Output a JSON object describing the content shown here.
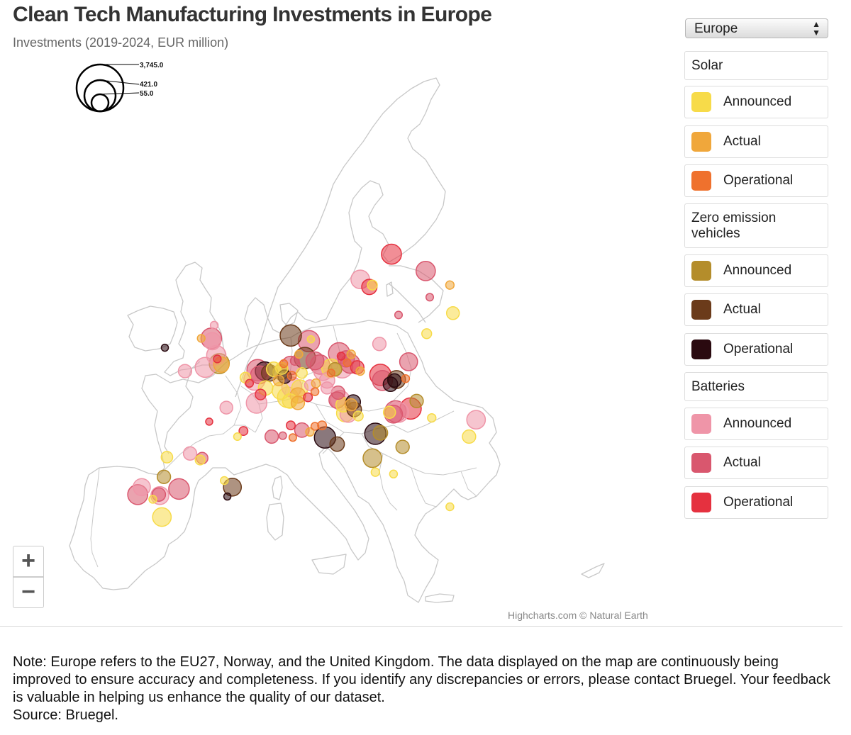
{
  "header": {
    "title": "Clean Tech Manufacturing Investments in Europe",
    "subtitle": "Investments (2019-2024, EUR million)"
  },
  "region_selector": {
    "value": "Europe"
  },
  "bubble_legend": {
    "labels": [
      "3,745.0",
      "421.0",
      "55.0"
    ],
    "values": [
      3745.0,
      421.0,
      55.0
    ]
  },
  "legend": {
    "groups": [
      {
        "name": "Solar",
        "items": [
          {
            "label": "Announced",
            "color": "#f7db49"
          },
          {
            "label": "Actual",
            "color": "#f0a73b"
          },
          {
            "label": "Operational",
            "color": "#ef712d"
          }
        ]
      },
      {
        "name": "Zero emission vehicles",
        "items": [
          {
            "label": "Announced",
            "color": "#b48d2b"
          },
          {
            "label": "Actual",
            "color": "#6b3b1a"
          },
          {
            "label": "Operational",
            "color": "#2a0a10"
          }
        ]
      },
      {
        "name": "Batteries",
        "items": [
          {
            "label": "Announced",
            "color": "#ef95a8"
          },
          {
            "label": "Actual",
            "color": "#d9576e"
          },
          {
            "label": "Operational",
            "color": "#e5313f"
          }
        ]
      }
    ]
  },
  "zoom": {
    "in_label": "+",
    "out_label": "−"
  },
  "credits": "Highcharts.com © Natural Earth",
  "note": {
    "text": "Note: Europe refers to the EU27, Norway, and the United Kingdom. The data displayed on the map are continuously being improved to ensure accuracy and completeness. If you identify any discrepancies or errors, please contact Bruegel. Your feedback is valuable in helping us enhance the quality of our dataset.",
    "source": "Source: Bruegel."
  },
  "chart_data": {
    "type": "bubble-map",
    "title": "Clean Tech Manufacturing Investments in Europe",
    "subtitle": "Investments (2019-2024, EUR million)",
    "region": "Europe",
    "size_legend": [
      3745.0,
      421.0,
      55.0
    ],
    "categories": {
      "SA": "Solar — Announced",
      "SB": "Solar — Actual",
      "SO": "Solar — Operational",
      "ZA": "Zero emission vehicles — Announced",
      "ZB": "Zero emission vehicles — Actual",
      "ZO": "Zero emission vehicles — Operational",
      "BA": "Batteries — Announced",
      "BB": "Batteries — Actual",
      "BO": "Batteries — Operational"
    },
    "points": [
      {
        "lon": 16.2,
        "lat": 64.5,
        "v": 1200,
        "c": "BO"
      },
      {
        "lon": 19.6,
        "lat": 62.7,
        "v": 1100,
        "c": "BB"
      },
      {
        "lon": 13.1,
        "lat": 61.8,
        "v": 1000,
        "c": "BA"
      },
      {
        "lon": 14.3,
        "lat": 61.2,
        "v": 150,
        "c": "SA"
      },
      {
        "lon": 14.0,
        "lat": 61.0,
        "v": 600,
        "c": "BO"
      },
      {
        "lon": 22.0,
        "lat": 61.2,
        "v": 80,
        "c": "SB"
      },
      {
        "lon": 20.0,
        "lat": 59.9,
        "v": 50,
        "c": "BB"
      },
      {
        "lon": 22.3,
        "lat": 58.2,
        "v": 350,
        "c": "SA"
      },
      {
        "lon": -1.4,
        "lat": 56.9,
        "v": 60,
        "c": "BA"
      },
      {
        "lon": -1.7,
        "lat": 55.5,
        "v": 1300,
        "c": "BB"
      },
      {
        "lon": -1.6,
        "lat": 55.2,
        "v": 800,
        "c": "BA"
      },
      {
        "lon": -2.7,
        "lat": 55.5,
        "v": 55,
        "c": "SB"
      },
      {
        "lon": -6.3,
        "lat": 54.5,
        "v": 40,
        "c": "ZO"
      },
      {
        "lon": -1.2,
        "lat": 53.7,
        "v": 1100,
        "c": "BA"
      },
      {
        "lon": -1.1,
        "lat": 53.3,
        "v": 55,
        "c": "BO"
      },
      {
        "lon": -0.9,
        "lat": 52.8,
        "v": 1200,
        "c": "ZA"
      },
      {
        "lon": -0.7,
        "lat": 52.7,
        "v": 600,
        "c": "SB"
      },
      {
        "lon": -2.3,
        "lat": 52.4,
        "v": 1200,
        "c": "BA"
      },
      {
        "lon": -4.3,
        "lat": 52.0,
        "v": 400,
        "c": "BA"
      },
      {
        "lon": 2.9,
        "lat": 52.1,
        "v": 1500,
        "c": "BB"
      },
      {
        "lon": 3.6,
        "lat": 52.0,
        "v": 1000,
        "c": "ZO"
      },
      {
        "lon": 4.1,
        "lat": 51.8,
        "v": 700,
        "c": "ZB"
      },
      {
        "lon": 4.5,
        "lat": 52.2,
        "v": 500,
        "c": "SA"
      },
      {
        "lon": 5.3,
        "lat": 52.3,
        "v": 300,
        "c": "SA"
      },
      {
        "lon": 5.2,
        "lat": 51.9,
        "v": 600,
        "c": "ZA"
      },
      {
        "lon": 3.1,
        "lat": 51.6,
        "v": 900,
        "c": "BB"
      },
      {
        "lon": 2.6,
        "lat": 51.1,
        "v": 1500,
        "c": "BA"
      },
      {
        "lon": 5.6,
        "lat": 51.4,
        "v": 400,
        "c": "ZO"
      },
      {
        "lon": 6.2,
        "lat": 52.6,
        "v": 1000,
        "c": "BB"
      },
      {
        "lon": 7.6,
        "lat": 53.4,
        "v": 1400,
        "c": "ZB"
      },
      {
        "lon": 8.6,
        "lat": 53.1,
        "v": 900,
        "c": "BB"
      },
      {
        "lon": 9.1,
        "lat": 52.7,
        "v": 1100,
        "c": "BB"
      },
      {
        "lon": 9.4,
        "lat": 52.0,
        "v": 1000,
        "c": "BA"
      },
      {
        "lon": 10.2,
        "lat": 52.3,
        "v": 1000,
        "c": "SA"
      },
      {
        "lon": 10.6,
        "lat": 52.2,
        "v": 400,
        "c": "ZA"
      },
      {
        "lon": 11.3,
        "lat": 52.4,
        "v": 1400,
        "c": "BA"
      },
      {
        "lon": 11.0,
        "lat": 53.9,
        "v": 1500,
        "c": "BB"
      },
      {
        "lon": 11.7,
        "lat": 53.3,
        "v": 700,
        "c": "BB"
      },
      {
        "lon": 12.1,
        "lat": 52.8,
        "v": 1100,
        "c": "BB"
      },
      {
        "lon": 12.8,
        "lat": 52.4,
        "v": 400,
        "c": "BO"
      },
      {
        "lon": 11.2,
        "lat": 53.6,
        "v": 60,
        "c": "BO"
      },
      {
        "lon": 12.2,
        "lat": 53.8,
        "v": 80,
        "c": "SB"
      },
      {
        "lon": 11.8,
        "lat": 52.9,
        "v": 50,
        "c": "SO"
      },
      {
        "lon": 13.1,
        "lat": 52.0,
        "v": 80,
        "c": "SB"
      },
      {
        "lon": 9.8,
        "lat": 51.0,
        "v": 600,
        "c": "BA"
      },
      {
        "lon": 7.1,
        "lat": 50.2,
        "v": 700,
        "c": "SA"
      },
      {
        "lon": 6.3,
        "lat": 50.3,
        "v": 1200,
        "c": "BA"
      },
      {
        "lon": 5.2,
        "lat": 49.9,
        "v": 800,
        "c": "SA"
      },
      {
        "lon": 5.9,
        "lat": 49.2,
        "v": 1300,
        "c": "SA"
      },
      {
        "lon": 6.9,
        "lat": 49.4,
        "v": 600,
        "c": "SB"
      },
      {
        "lon": 6.1,
        "lat": 48.8,
        "v": 500,
        "c": "SA"
      },
      {
        "lon": 6.9,
        "lat": 48.6,
        "v": 400,
        "c": "SB"
      },
      {
        "lon": 7.9,
        "lat": 49.2,
        "v": 100,
        "c": "BO"
      },
      {
        "lon": 8.1,
        "lat": 50.5,
        "v": 200,
        "c": "BA"
      },
      {
        "lon": 8.6,
        "lat": 49.8,
        "v": 60,
        "c": "SO"
      },
      {
        "lon": 8.7,
        "lat": 50.7,
        "v": 100,
        "c": "SB"
      },
      {
        "lon": 10.9,
        "lat": 49.7,
        "v": 400,
        "c": "BB"
      },
      {
        "lon": 11.1,
        "lat": 48.9,
        "v": 1100,
        "c": "BA"
      },
      {
        "lon": 11.4,
        "lat": 48.4,
        "v": 500,
        "c": "SA"
      },
      {
        "lon": 12.4,
        "lat": 48.7,
        "v": 500,
        "c": "ZO"
      },
      {
        "lon": 10.8,
        "lat": 48.9,
        "v": 700,
        "c": "BB"
      },
      {
        "lon": 12.2,
        "lat": 48.4,
        "v": 300,
        "c": "SB"
      },
      {
        "lon": 15.1,
        "lat": 51.6,
        "v": 1500,
        "c": "BO"
      },
      {
        "lon": 15.3,
        "lat": 51.0,
        "v": 1200,
        "c": "BB"
      },
      {
        "lon": 16.7,
        "lat": 51.1,
        "v": 900,
        "c": "ZB"
      },
      {
        "lon": 16.5,
        "lat": 51.0,
        "v": 400,
        "c": "ZO"
      },
      {
        "lon": 17.6,
        "lat": 51.2,
        "v": 60,
        "c": "SO"
      },
      {
        "lon": 16.1,
        "lat": 50.6,
        "v": 500,
        "c": "ZO"
      },
      {
        "lon": 17.9,
        "lat": 53.0,
        "v": 900,
        "c": "BB"
      },
      {
        "lon": 15.0,
        "lat": 54.9,
        "v": 400,
        "c": "BA"
      },
      {
        "lon": 19.7,
        "lat": 56.0,
        "v": 150,
        "c": "SA"
      },
      {
        "lon": 18.7,
        "lat": 48.8,
        "v": 400,
        "c": "ZA"
      },
      {
        "lon": 18.1,
        "lat": 48.0,
        "v": 1500,
        "c": "BO"
      },
      {
        "lon": 16.6,
        "lat": 47.7,
        "v": 1500,
        "c": "BB"
      },
      {
        "lon": 16.9,
        "lat": 47.6,
        "v": 1200,
        "c": "BA"
      },
      {
        "lon": 16.4,
        "lat": 47.4,
        "v": 900,
        "c": "BB"
      },
      {
        "lon": 16.0,
        "lat": 47.6,
        "v": 300,
        "c": "SA"
      },
      {
        "lon": 11.9,
        "lat": 47.4,
        "v": 700,
        "c": "BA"
      },
      {
        "lon": 11.6,
        "lat": 47.5,
        "v": 800,
        "c": "SA"
      },
      {
        "lon": 12.5,
        "lat": 47.9,
        "v": 500,
        "c": "ZB"
      },
      {
        "lon": 12.9,
        "lat": 47.2,
        "v": 150,
        "c": "SA"
      },
      {
        "lon": 14.6,
        "lat": 45.3,
        "v": 1400,
        "c": "ZO"
      },
      {
        "lon": 15.1,
        "lat": 45.4,
        "v": 500,
        "c": "ZA"
      },
      {
        "lon": 20.2,
        "lat": 47.0,
        "v": 80,
        "c": "SA"
      },
      {
        "lon": 24.6,
        "lat": 46.8,
        "v": 1000,
        "c": "BA"
      },
      {
        "lon": 23.9,
        "lat": 45.0,
        "v": 400,
        "c": "SA"
      },
      {
        "lon": 17.3,
        "lat": 43.9,
        "v": 400,
        "c": "ZA"
      },
      {
        "lon": 14.3,
        "lat": 42.7,
        "v": 1000,
        "c": "ZA"
      },
      {
        "lon": 14.6,
        "lat": 41.2,
        "v": 80,
        "c": "SA"
      },
      {
        "lon": 16.4,
        "lat": 41.0,
        "v": 60,
        "c": "SA"
      },
      {
        "lon": 9.6,
        "lat": 44.9,
        "v": 1500,
        "c": "ZO"
      },
      {
        "lon": 9.3,
        "lat": 46.2,
        "v": 100,
        "c": "SO"
      },
      {
        "lon": 10.8,
        "lat": 44.2,
        "v": 500,
        "c": "ZB"
      },
      {
        "lon": 7.3,
        "lat": 45.7,
        "v": 500,
        "c": "BB"
      },
      {
        "lon": 6.2,
        "lat": 46.2,
        "v": 100,
        "c": "BO"
      },
      {
        "lon": 8.6,
        "lat": 46.1,
        "v": 60,
        "c": "SO"
      },
      {
        "lon": 8.1,
        "lat": 45.5,
        "v": 80,
        "c": "SB"
      },
      {
        "lon": 2.8,
        "lat": 48.6,
        "v": 1300,
        "c": "BA"
      },
      {
        "lon": 3.2,
        "lat": 49.5,
        "v": 200,
        "c": "BO"
      },
      {
        "lon": 3.7,
        "lat": 50.2,
        "v": 500,
        "c": "SA"
      },
      {
        "lon": 5.0,
        "lat": 51.0,
        "v": 200,
        "c": "SB"
      },
      {
        "lon": 2.1,
        "lat": 50.7,
        "v": 60,
        "c": "BO"
      },
      {
        "lon": 1.7,
        "lat": 51.3,
        "v": 200,
        "c": "SA"
      },
      {
        "lon": 6.3,
        "lat": 51.5,
        "v": 100,
        "c": "SO"
      },
      {
        "lon": 9.8,
        "lat": 50.2,
        "v": 300,
        "c": "BA"
      },
      {
        "lon": 10.2,
        "lat": 51.8,
        "v": 50,
        "c": "SO"
      },
      {
        "lon": 7.0,
        "lat": 53.8,
        "v": 60,
        "c": "SB"
      },
      {
        "lon": 5.5,
        "lat": 52.8,
        "v": 60,
        "c": "SO"
      },
      {
        "lon": 7.3,
        "lat": 51.8,
        "v": 200,
        "c": "SA"
      },
      {
        "lon": 6.6,
        "lat": 53.1,
        "v": 100,
        "c": "BB"
      },
      {
        "lon": 8.2,
        "lat": 55.4,
        "v": 40,
        "c": "SA"
      },
      {
        "lon": 16.9,
        "lat": 58.0,
        "v": 50,
        "c": "BB"
      },
      {
        "lon": -0.2,
        "lat": 48.1,
        "v": 350,
        "c": "BA"
      },
      {
        "lon": -1.9,
        "lat": 46.6,
        "v": 40,
        "c": "BO"
      },
      {
        "lon": 1.5,
        "lat": 45.6,
        "v": 100,
        "c": "BO"
      },
      {
        "lon": 0.9,
        "lat": 45.0,
        "v": 50,
        "c": "SA"
      },
      {
        "lon": 4.3,
        "lat": 45.0,
        "v": 400,
        "c": "BB"
      },
      {
        "lon": 6.4,
        "lat": 44.9,
        "v": 50,
        "c": "SO"
      },
      {
        "lon": 5.4,
        "lat": 45.1,
        "v": 50,
        "c": "BB"
      },
      {
        "lon": -6.1,
        "lat": 42.8,
        "v": 250,
        "c": "SA"
      },
      {
        "lon": -3.8,
        "lat": 43.2,
        "v": 400,
        "c": "BA"
      },
      {
        "lon": -2.6,
        "lat": 42.7,
        "v": 250,
        "c": "BB"
      },
      {
        "lon": -2.8,
        "lat": 42.5,
        "v": 150,
        "c": "SA"
      },
      {
        "lon": -6.4,
        "lat": 40.7,
        "v": 400,
        "c": "ZA"
      },
      {
        "lon": -4.9,
        "lat": 39.4,
        "v": 1300,
        "c": "BB"
      },
      {
        "lon": -0.4,
        "lat": 40.3,
        "v": 60,
        "c": "SA"
      },
      {
        "lon": 0.4,
        "lat": 39.6,
        "v": 900,
        "c": "ZB"
      },
      {
        "lon": -0.1,
        "lat": 38.6,
        "v": 40,
        "c": "ZO"
      },
      {
        "lon": -9.0,
        "lat": 38.8,
        "v": 1200,
        "c": "BB"
      },
      {
        "lon": -8.6,
        "lat": 39.6,
        "v": 800,
        "c": "BA"
      },
      {
        "lon": -6.8,
        "lat": 38.7,
        "v": 900,
        "c": "BA"
      },
      {
        "lon": -6.9,
        "lat": 38.8,
        "v": 400,
        "c": "BB"
      },
      {
        "lon": -6.6,
        "lat": 36.4,
        "v": 1000,
        "c": "SA"
      },
      {
        "lon": -7.5,
        "lat": 38.3,
        "v": 60,
        "c": "SA"
      },
      {
        "lon": 22.0,
        "lat": 37.5,
        "v": 60,
        "c": "SA"
      },
      {
        "lon": 6.2,
        "lat": 55.8,
        "v": 1600,
        "c": "ZB"
      },
      {
        "lon": 8.0,
        "lat": 55.2,
        "v": 1700,
        "c": "BB"
      }
    ]
  }
}
